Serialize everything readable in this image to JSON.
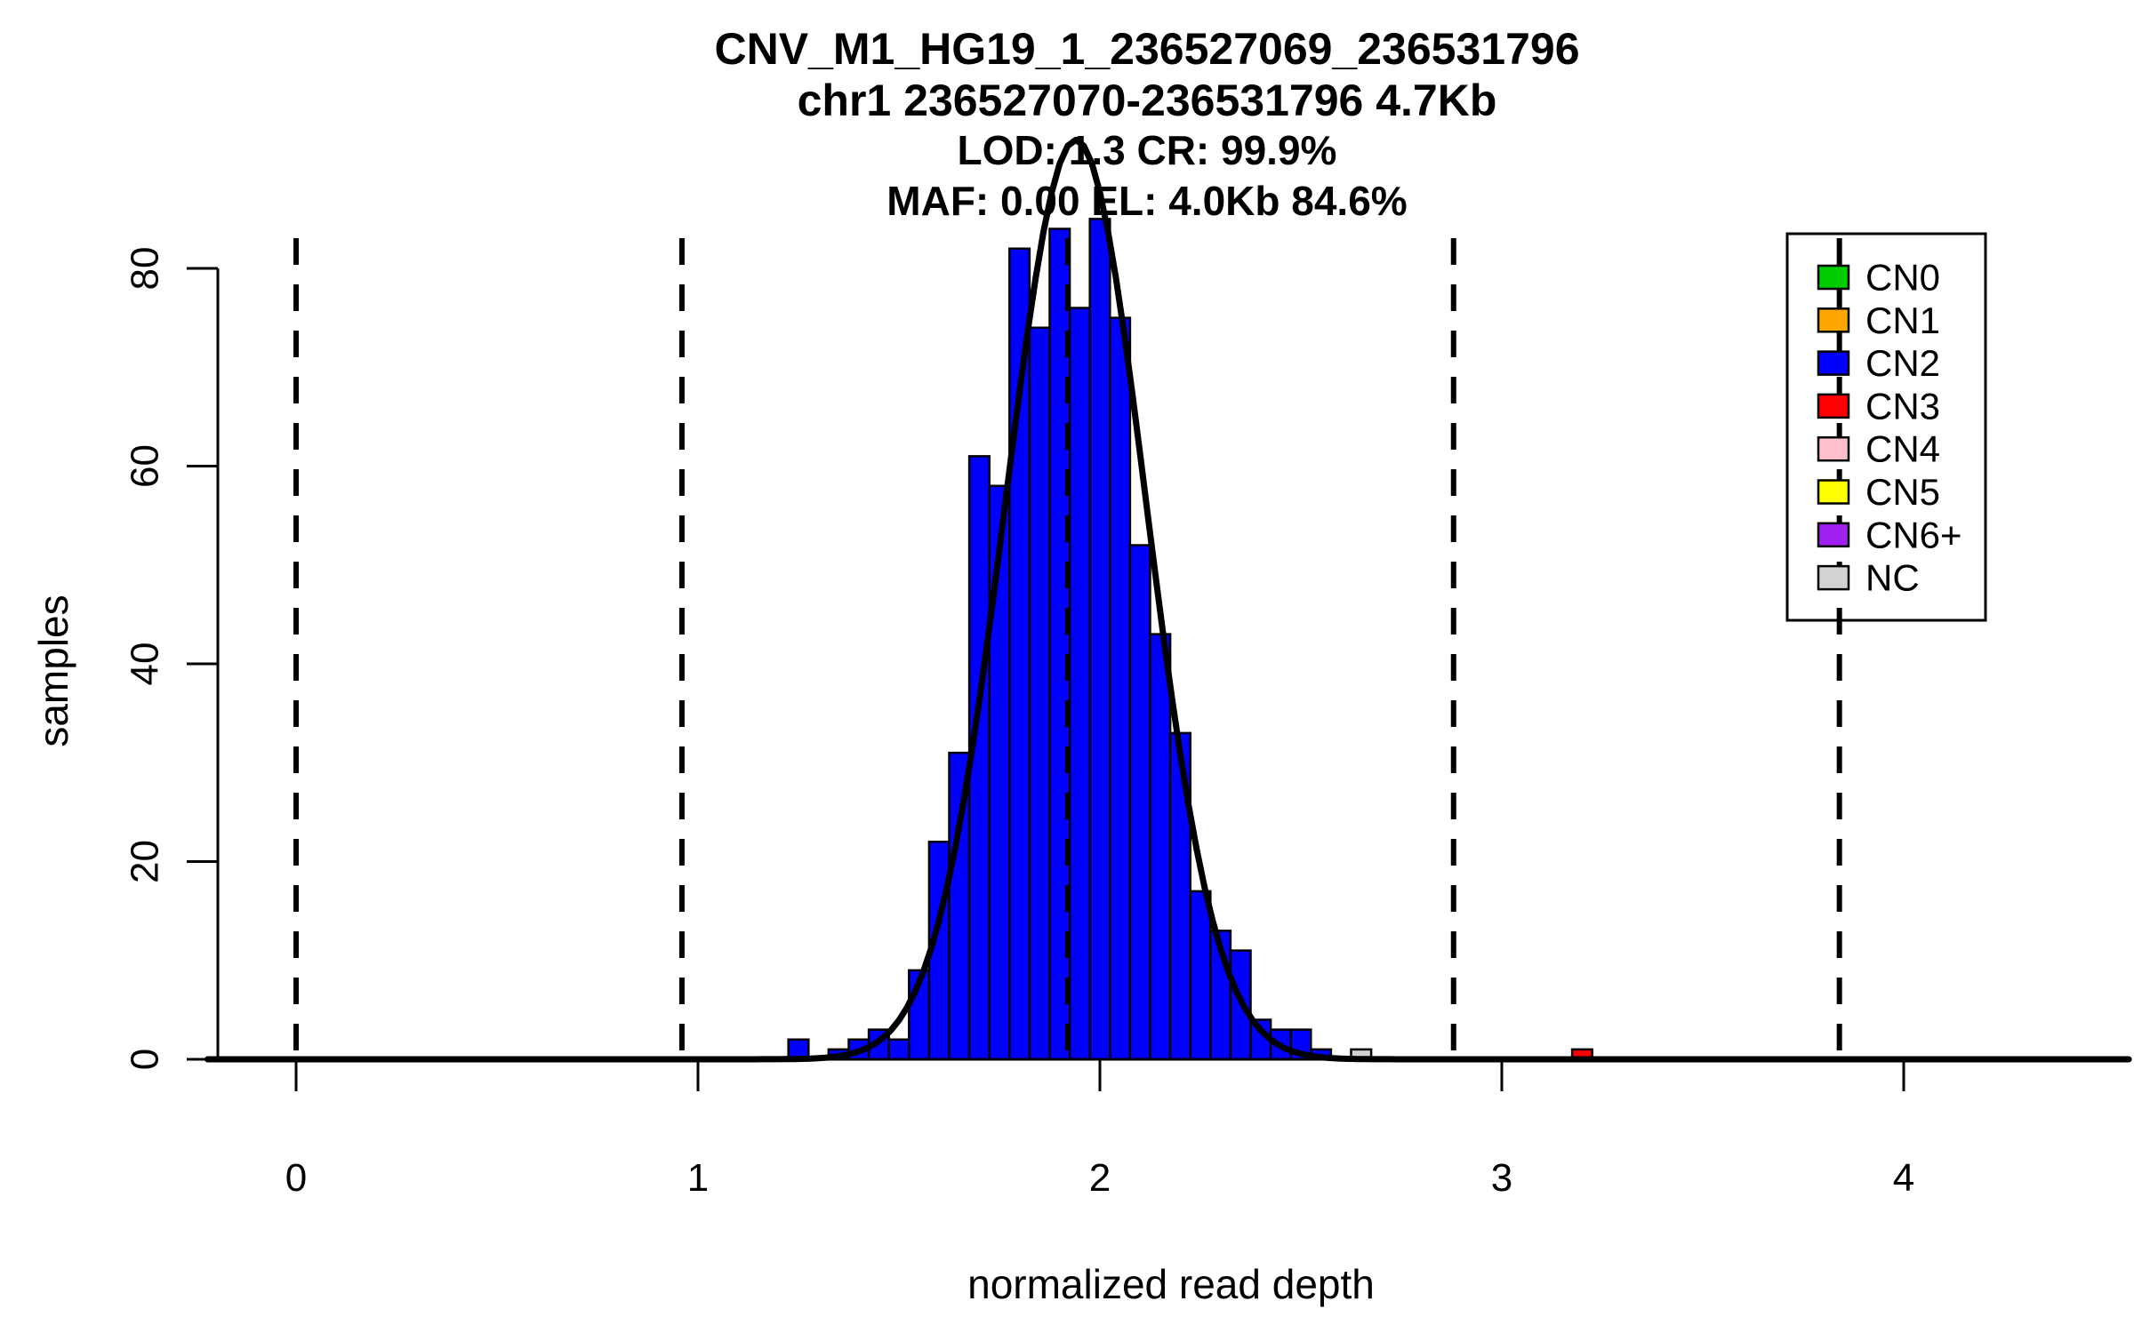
{
  "title": {
    "line1": "CNV_M1_HG19_1_236527069_236531796",
    "line2": "chr1 236527070-236531796 4.7Kb",
    "line3": "LOD: 1.3 CR: 99.9%",
    "line4": "MAF: 0.00 EL: 4.0Kb 84.6%"
  },
  "axes": {
    "xlabel": "normalized read depth",
    "ylabel": "samples"
  },
  "colors": {
    "CN0": "#00CC00",
    "CN1": "#FFA500",
    "CN2": "#0000FF",
    "CN3": "#FF0000",
    "CN4": "#FFC0CB",
    "CN5": "#FFFF00",
    "CN6+": "#A020F0",
    "NC": "#D3D3D3",
    "bar_border": "#000000",
    "axis": "#000000",
    "fit_curve": "#000000",
    "dashed_line": "#000000",
    "legend_box_fill": "#FFFFFF"
  },
  "legend": {
    "items": [
      {
        "label": "CN0",
        "color": "#00CC00"
      },
      {
        "label": "CN1",
        "color": "#FFA500"
      },
      {
        "label": "CN2",
        "color": "#0000FF"
      },
      {
        "label": "CN3",
        "color": "#FF0000"
      },
      {
        "label": "CN4",
        "color": "#FFC0CB"
      },
      {
        "label": "CN5",
        "color": "#FFFF00"
      },
      {
        "label": "CN6+",
        "color": "#A020F0"
      },
      {
        "label": "NC",
        "color": "#D3D3D3"
      }
    ]
  },
  "chart_data": {
    "type": "bar",
    "subtype": "histogram",
    "title": "CNV_M1_HG19_1_236527069_236531796",
    "subtitle_lines": [
      "chr1 236527070-236531796 4.7Kb",
      "LOD: 1.3 CR: 99.9%",
      "MAF: 0.00 EL: 4.0Kb 84.6%"
    ],
    "xlabel": "normalized read depth",
    "ylabel": "samples",
    "xlim": [
      -0.22,
      4.56
    ],
    "ylim": [
      0,
      88
    ],
    "x_ticks": [
      0,
      1,
      2,
      3,
      4
    ],
    "y_ticks": [
      0,
      20,
      40,
      60,
      80
    ],
    "grid": false,
    "legend_position": "top-right",
    "bin_width": 0.05,
    "bins": [
      {
        "x": 1.25,
        "n": 2,
        "cn": "CN2"
      },
      {
        "x": 1.3,
        "n": 0,
        "cn": "CN2"
      },
      {
        "x": 1.35,
        "n": 1,
        "cn": "CN2"
      },
      {
        "x": 1.4,
        "n": 2,
        "cn": "CN2"
      },
      {
        "x": 1.45,
        "n": 3,
        "cn": "CN2"
      },
      {
        "x": 1.5,
        "n": 2,
        "cn": "CN2"
      },
      {
        "x": 1.55,
        "n": 9,
        "cn": "CN2"
      },
      {
        "x": 1.6,
        "n": 22,
        "cn": "CN2"
      },
      {
        "x": 1.65,
        "n": 31,
        "cn": "CN2"
      },
      {
        "x": 1.7,
        "n": 61,
        "cn": "CN2"
      },
      {
        "x": 1.75,
        "n": 58,
        "cn": "CN2"
      },
      {
        "x": 1.8,
        "n": 82,
        "cn": "CN2"
      },
      {
        "x": 1.85,
        "n": 74,
        "cn": "CN2"
      },
      {
        "x": 1.9,
        "n": 84,
        "cn": "CN2"
      },
      {
        "x": 1.95,
        "n": 76,
        "cn": "CN2"
      },
      {
        "x": 2.0,
        "n": 85,
        "cn": "CN2"
      },
      {
        "x": 2.05,
        "n": 75,
        "cn": "CN2"
      },
      {
        "x": 2.1,
        "n": 52,
        "cn": "CN2"
      },
      {
        "x": 2.15,
        "n": 43,
        "cn": "CN2"
      },
      {
        "x": 2.2,
        "n": 33,
        "cn": "CN2"
      },
      {
        "x": 2.25,
        "n": 17,
        "cn": "CN2"
      },
      {
        "x": 2.3,
        "n": 13,
        "cn": "CN2"
      },
      {
        "x": 2.35,
        "n": 11,
        "cn": "CN2"
      },
      {
        "x": 2.4,
        "n": 4,
        "cn": "CN2"
      },
      {
        "x": 2.45,
        "n": 3,
        "cn": "CN2"
      },
      {
        "x": 2.5,
        "n": 3,
        "cn": "CN2"
      },
      {
        "x": 2.55,
        "n": 1,
        "cn": "CN2"
      },
      {
        "x": 2.65,
        "n": 1,
        "cn": "NC"
      },
      {
        "x": 3.2,
        "n": 1,
        "cn": "CN3"
      }
    ],
    "fit_curve": {
      "shape": "gaussian",
      "mean": 1.94,
      "sd": 0.175,
      "peak": 93
    },
    "cn_mean_lines": [
      0.0,
      0.96,
      1.92,
      2.88,
      3.84
    ]
  }
}
